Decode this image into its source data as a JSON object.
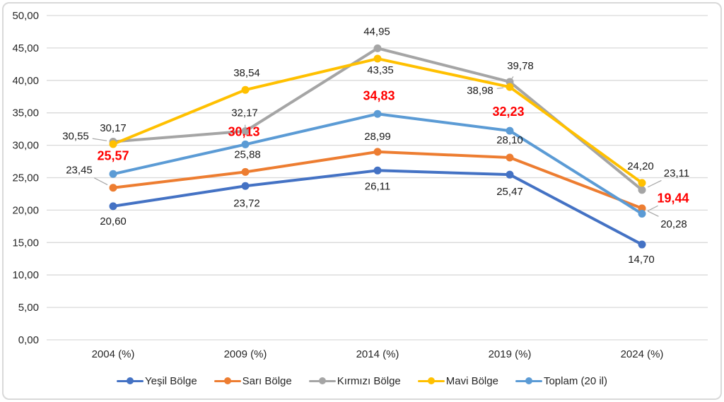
{
  "figure": {
    "background": "#FFFFFF",
    "border_color": "#D9D9D9",
    "grid_color": "#D9D9D9",
    "leader_color": "#A6A6A6",
    "data_label_color": "#1A1A1A",
    "axis_label_color": "#262626",
    "highlight_color": "#FF0000"
  },
  "chart_data": {
    "type": "line",
    "title": "",
    "xlabel": "",
    "ylabel": "",
    "grid": true,
    "legend_position": "bottom",
    "decimal_separator": ",",
    "ylim": [
      0,
      50
    ],
    "y_step": 5,
    "y_tick_labels": [
      "0,00",
      "5,00",
      "10,00",
      "15,00",
      "20,00",
      "25,00",
      "30,00",
      "35,00",
      "40,00",
      "45,00",
      "50,00"
    ],
    "categories": [
      "2004 (%)",
      "2009 (%)",
      "2014 (%)",
      "2019 (%)",
      "2024 (%)"
    ],
    "series": [
      {
        "name": "Yeşil Bölge",
        "color": "#4472C4",
        "values": [
          20.6,
          23.72,
          26.11,
          25.47,
          14.7
        ],
        "labels": [
          "20,60",
          "23,72",
          "26,11",
          "25,47",
          "14,70"
        ],
        "label_highlight": false
      },
      {
        "name": "Sarı Bölge",
        "color": "#ED7D31",
        "values": [
          23.45,
          25.88,
          28.99,
          28.1,
          20.28
        ],
        "labels": [
          "23,45",
          "25,88",
          "28,99",
          "28,10",
          "20,28"
        ],
        "label_highlight": false
      },
      {
        "name": "Kırmızı Bölge",
        "color": "#A5A5A5",
        "values": [
          30.55,
          32.17,
          44.95,
          39.78,
          23.11
        ],
        "labels": [
          "30,55",
          "32,17",
          "44,95",
          "39,78",
          "23,11"
        ],
        "label_highlight": false
      },
      {
        "name": "Mavi Bölge",
        "color": "#FFC000",
        "values": [
          30.17,
          38.54,
          43.35,
          38.98,
          24.2
        ],
        "labels": [
          "30,17",
          "38,54",
          "43,35",
          "38,98",
          "24,20"
        ],
        "label_highlight": false
      },
      {
        "name": "Toplam (20 il)",
        "color": "#5B9BD5",
        "values": [
          25.57,
          30.13,
          34.83,
          32.23,
          19.44
        ],
        "labels": [
          "25,57",
          "30,13",
          "34,83",
          "32,23",
          "19,44"
        ],
        "label_highlight": true
      }
    ],
    "label_layout": {
      "offsets": [
        [
          [
            0,
            21
          ],
          [
            2,
            24
          ],
          [
            0,
            22
          ],
          [
            0,
            24
          ],
          [
            -1,
            21
          ]
        ],
        [
          [
            -48,
            -25
          ],
          [
            3,
            -25
          ],
          [
            0,
            -22
          ],
          [
            0,
            -25
          ],
          [
            45,
            22
          ]
        ],
        [
          [
            -53,
            -8
          ],
          [
            -1,
            -26
          ],
          [
            -1,
            -24
          ],
          [
            15,
            -23
          ],
          [
            49,
            -24
          ]
        ],
        [
          [
            0,
            -23
          ],
          [
            2,
            -24
          ],
          [
            4,
            16
          ],
          [
            -42,
            5
          ],
          [
            -2,
            -24
          ]
        ],
        [
          [
            0,
            -26
          ],
          [
            -2,
            -18
          ],
          [
            2,
            -26
          ],
          [
            -2,
            -27
          ],
          [
            44,
            -22
          ]
        ]
      ],
      "leaders": [
        [
          1,
          0
        ],
        [
          1,
          4
        ],
        [
          2,
          0
        ],
        [
          2,
          1
        ],
        [
          2,
          3
        ],
        [
          2,
          4
        ],
        [
          3,
          3
        ],
        [
          4,
          4
        ]
      ]
    }
  }
}
